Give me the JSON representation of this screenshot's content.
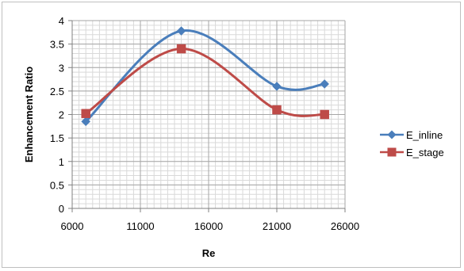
{
  "chart_data": {
    "type": "line",
    "title": "",
    "xlabel": "Re",
    "ylabel": "Enhancement Ratio",
    "xlim": [
      6000,
      26000
    ],
    "ylim": [
      0,
      4
    ],
    "xticks": [
      6000,
      11000,
      16000,
      21000,
      26000
    ],
    "yticks": [
      0,
      0.5,
      1,
      1.5,
      2,
      2.5,
      3,
      3.5,
      4
    ],
    "x_minor_step": 500,
    "y_minor_step": 0.1,
    "grid": true,
    "smooth": true,
    "legend_position": "right",
    "series": [
      {
        "name": "E_inline",
        "color": "#4a7ebb",
        "marker": "diamond",
        "x": [
          7000,
          14000,
          21000,
          24500
        ],
        "y": [
          1.85,
          3.78,
          2.6,
          2.65
        ]
      },
      {
        "name": "E_stage",
        "color": "#be4b48",
        "marker": "square",
        "x": [
          7000,
          14000,
          21000,
          24500
        ],
        "y": [
          2.02,
          3.4,
          2.1,
          2.0
        ]
      }
    ]
  }
}
